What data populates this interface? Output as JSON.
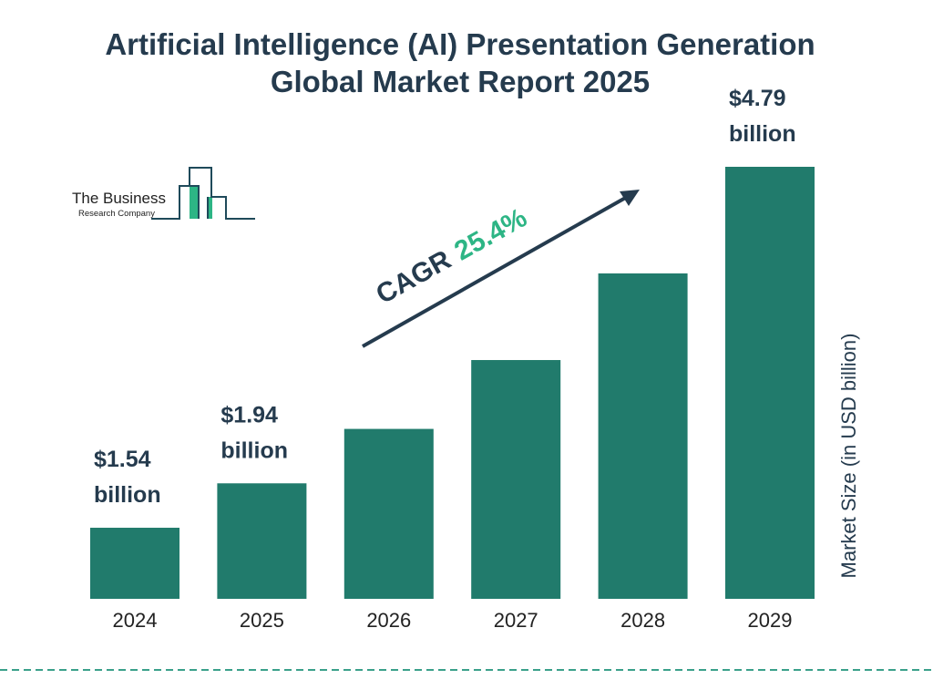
{
  "title_line1": "Artificial Intelligence (AI) Presentation Generation",
  "title_line2": "Global Market Report 2025",
  "logo": {
    "line1": "The Business",
    "line2": "Research Company"
  },
  "colors": {
    "bar": "#217b6c",
    "text": "#253b4e",
    "accent": "#2db585",
    "dash": "#3aa08a"
  },
  "chart_data": {
    "type": "bar",
    "categories": [
      "2024",
      "2025",
      "2026",
      "2027",
      "2028",
      "2029"
    ],
    "values": [
      1.54,
      1.94,
      2.43,
      3.05,
      3.83,
      4.79
    ],
    "data_labels": [
      {
        "index": 0,
        "value": "$1.54",
        "unit": "billion"
      },
      {
        "index": 1,
        "value": "$1.94",
        "unit": "billion"
      },
      {
        "index": 5,
        "value": "$4.79",
        "unit": "billion"
      }
    ],
    "ylabel": "Market Size (in USD billion)",
    "ylim": [
      0.9,
      4.79
    ],
    "grid": false,
    "annotation": {
      "label": "CAGR",
      "value": "25.4%"
    }
  }
}
